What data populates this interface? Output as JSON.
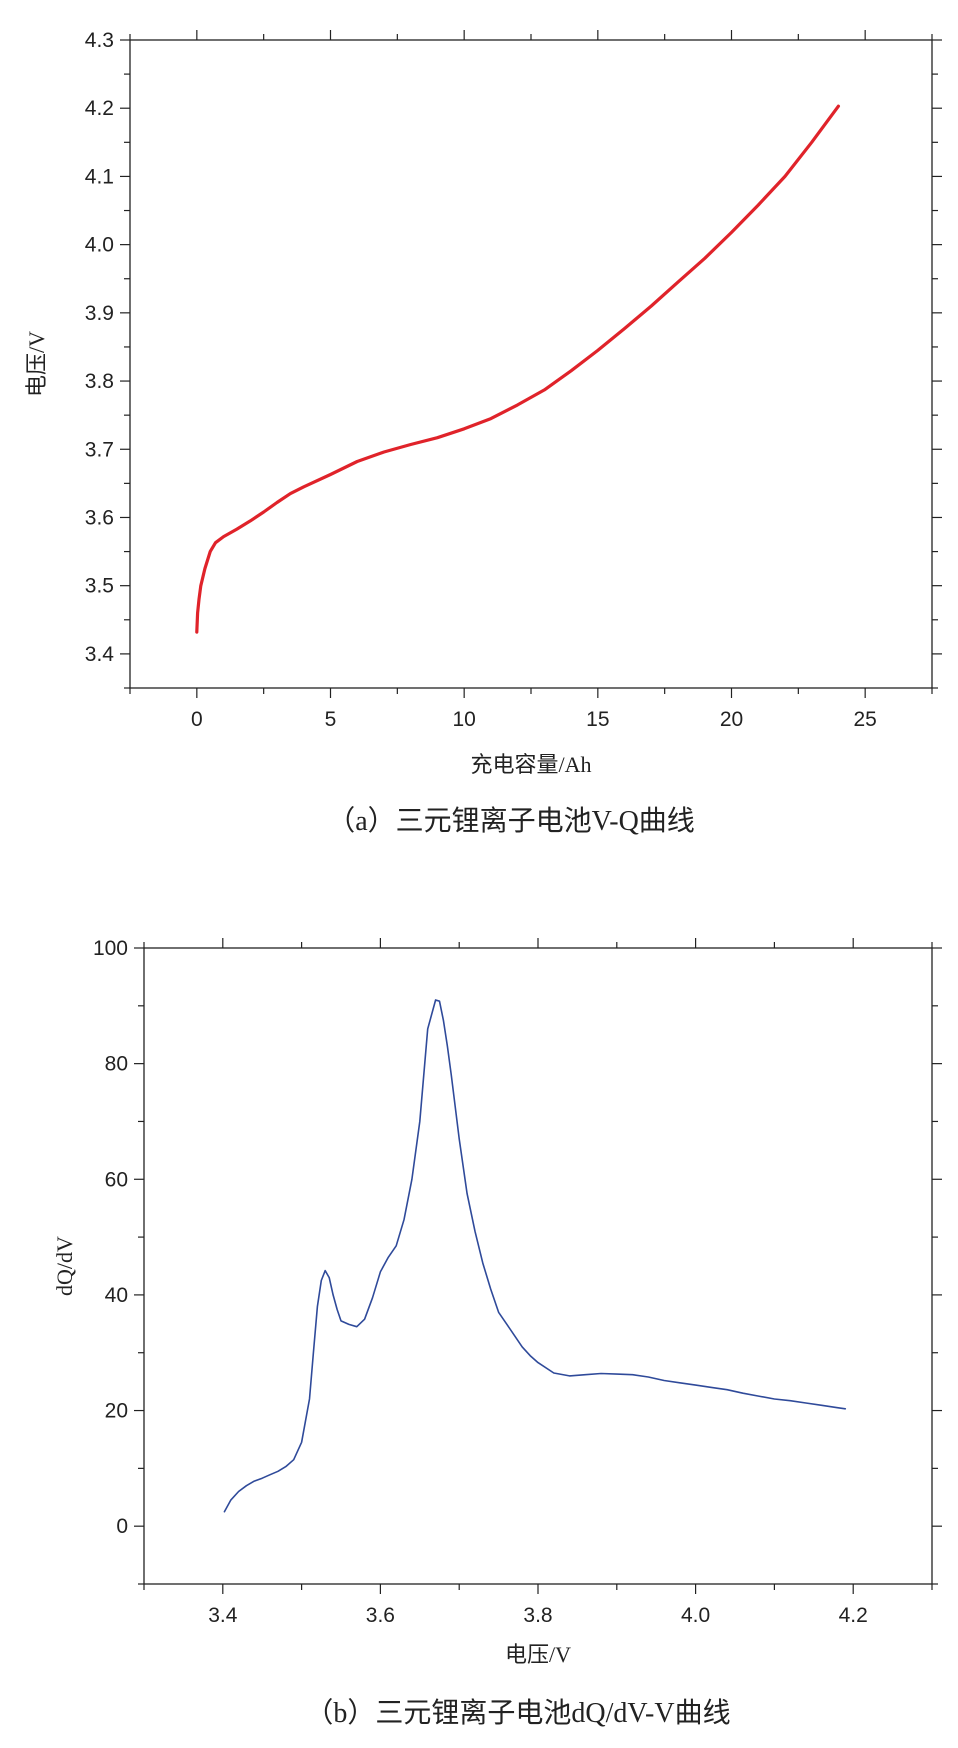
{
  "chart_data": [
    {
      "type": "line",
      "xlabel": "充电容量/Ah",
      "ylabel": "电压/V",
      "caption": "（a）三元锂离子电池V-Q曲线",
      "xlim": [
        -2.5,
        27.5
      ],
      "ylim": [
        3.35,
        4.3
      ],
      "xticks": [
        0,
        5,
        10,
        15,
        20,
        25
      ],
      "xtick_labels": [
        "0",
        "5",
        "10",
        "15",
        "20",
        "25"
      ],
      "yticks": [
        3.4,
        3.5,
        3.6,
        3.7,
        3.8,
        3.9,
        4.0,
        4.1,
        4.2,
        4.3
      ],
      "ytick_labels": [
        "3.4",
        "3.5",
        "3.6",
        "3.7",
        "3.8",
        "3.9",
        "4.0",
        "4.1",
        "4.2",
        "4.3"
      ],
      "grid": false,
      "series": [
        {
          "color": "#e0232a",
          "x": [
            0,
            0.03,
            0.08,
            0.15,
            0.3,
            0.5,
            0.7,
            1.0,
            1.5,
            2.0,
            2.5,
            3.0,
            3.5,
            4.0,
            5.0,
            6.0,
            7.0,
            8.0,
            9.0,
            10.0,
            11.0,
            12.0,
            13.0,
            14.0,
            15.0,
            16.0,
            17.0,
            18.0,
            19.0,
            20.0,
            21.0,
            22.0,
            23.0,
            24.0
          ],
          "y": [
            3.432,
            3.46,
            3.48,
            3.5,
            3.525,
            3.55,
            3.563,
            3.572,
            3.583,
            3.595,
            3.608,
            3.622,
            3.635,
            3.645,
            3.663,
            3.682,
            3.696,
            3.707,
            3.717,
            3.73,
            3.745,
            3.765,
            3.787,
            3.815,
            3.845,
            3.877,
            3.91,
            3.945,
            3.98,
            4.018,
            4.058,
            4.1,
            4.15,
            4.203
          ]
        }
      ]
    },
    {
      "type": "line",
      "xlabel": "电压/V",
      "ylabel": "dQ/dV",
      "caption": "（b）三元锂离子电池dQ/dV-V曲线",
      "xlim": [
        3.3,
        4.3
      ],
      "ylim": [
        -10,
        100
      ],
      "xticks": [
        3.4,
        3.6,
        3.8,
        4.0,
        4.2
      ],
      "xtick_labels": [
        "3.4",
        "3.6",
        "3.8",
        "4.0",
        "4.2"
      ],
      "yticks": [
        0,
        20,
        40,
        60,
        80,
        100
      ],
      "ytick_labels": [
        "0",
        "20",
        "40",
        "60",
        "80",
        "100"
      ],
      "grid": false,
      "series": [
        {
          "color": "#2f4a9a",
          "x": [
            3.402,
            3.41,
            3.42,
            3.43,
            3.44,
            3.45,
            3.46,
            3.47,
            3.48,
            3.49,
            3.5,
            3.51,
            3.515,
            3.52,
            3.525,
            3.53,
            3.535,
            3.54,
            3.545,
            3.55,
            3.56,
            3.57,
            3.58,
            3.59,
            3.6,
            3.61,
            3.62,
            3.63,
            3.64,
            3.65,
            3.66,
            3.67,
            3.675,
            3.68,
            3.685,
            3.69,
            3.7,
            3.71,
            3.72,
            3.73,
            3.74,
            3.75,
            3.76,
            3.77,
            3.78,
            3.79,
            3.8,
            3.82,
            3.84,
            3.86,
            3.88,
            3.9,
            3.92,
            3.94,
            3.96,
            3.98,
            4.0,
            4.02,
            4.04,
            4.06,
            4.08,
            4.1,
            4.12,
            4.14,
            4.16,
            4.18,
            4.19
          ],
          "y": [
            2.5,
            4.5,
            6.0,
            7.0,
            7.8,
            8.3,
            8.9,
            9.5,
            10.3,
            11.5,
            14.5,
            22.0,
            30.0,
            38.0,
            42.5,
            44.2,
            43.0,
            40.0,
            37.5,
            35.5,
            34.9,
            34.5,
            35.8,
            39.5,
            44.0,
            46.5,
            48.5,
            53.0,
            60.0,
            70.0,
            86.0,
            91.0,
            90.8,
            87.5,
            83.0,
            78.0,
            67.0,
            57.5,
            51.0,
            45.5,
            41.0,
            37.0,
            35.0,
            33.0,
            31.0,
            29.5,
            28.3,
            26.5,
            26.0,
            26.2,
            26.4,
            26.3,
            26.2,
            25.8,
            25.2,
            24.8,
            24.4,
            24.0,
            23.6,
            23.0,
            22.5,
            22.0,
            21.7,
            21.3,
            20.9,
            20.5,
            20.3
          ]
        }
      ]
    }
  ]
}
